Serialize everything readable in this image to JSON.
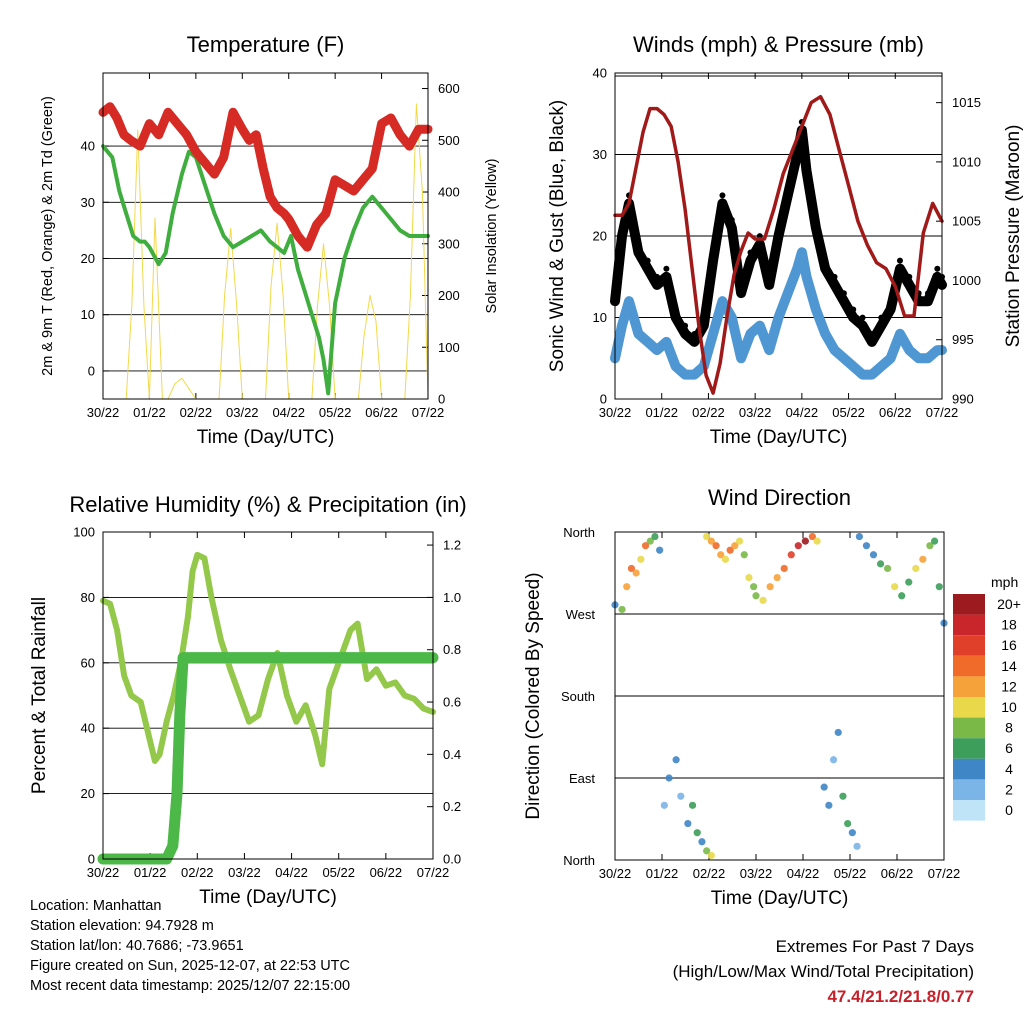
{
  "colors": {
    "temp2m": "#d62a24",
    "td": "#3fae3f",
    "solar": "#f2d94a",
    "wind": "#000000",
    "gust_sonic": "#4f97d3",
    "pressure": "#a01a1a",
    "rh": "#93c84a",
    "precip": "#4bb847"
  },
  "time_ticks": [
    "30/22",
    "01/22",
    "02/22",
    "03/22",
    "04/22",
    "05/22",
    "06/22",
    "07/22"
  ],
  "time_axis_label": "Time (Day/UTC)",
  "chart_data": [
    {
      "id": "temperature",
      "type": "line",
      "title": "Temperature (F)",
      "ylabel": "2m & 9m T (Red, Orange) & 2m Td (Green)",
      "ylabel_right": "Solar Insolation (Yellow)",
      "ylim": [
        -5,
        53
      ],
      "yticks": [
        0,
        10,
        20,
        30,
        40
      ],
      "ylim_right": [
        0,
        630
      ],
      "yticks_right": [
        0,
        100,
        200,
        300,
        400,
        500,
        600
      ],
      "xlim_days": [
        0,
        7
      ],
      "series": [
        {
          "name": "2m & 9m T",
          "color_key": "temp2m",
          "x": [
            0,
            0.15,
            0.3,
            0.45,
            0.6,
            0.8,
            1.0,
            1.2,
            1.4,
            1.6,
            1.8,
            2.0,
            2.2,
            2.4,
            2.6,
            2.8,
            3.0,
            3.15,
            3.3,
            3.45,
            3.6,
            3.75,
            3.9,
            4.0,
            4.2,
            4.4,
            4.6,
            4.8,
            5.0,
            5.2,
            5.4,
            5.6,
            5.8,
            6.0,
            6.2,
            6.4,
            6.6,
            6.8,
            7.0
          ],
          "values": [
            46,
            47,
            45,
            42,
            41,
            40,
            44,
            42,
            46,
            44,
            42,
            39,
            37,
            35,
            38,
            46,
            43,
            41,
            42,
            36,
            31,
            29,
            28,
            27,
            24,
            22,
            26,
            28,
            34,
            33,
            32,
            34,
            36,
            44,
            45,
            42,
            40,
            43,
            43
          ]
        },
        {
          "name": "2m Td",
          "color_key": "td",
          "x": [
            0,
            0.1,
            0.2,
            0.35,
            0.5,
            0.65,
            0.8,
            0.9,
            1.0,
            1.2,
            1.35,
            1.5,
            1.7,
            1.85,
            2.0,
            2.2,
            2.4,
            2.6,
            2.8,
            3.0,
            3.2,
            3.4,
            3.6,
            3.75,
            3.9,
            4.05,
            4.2,
            4.35,
            4.5,
            4.65,
            4.75,
            4.85,
            5.0,
            5.2,
            5.4,
            5.6,
            5.8,
            6.0,
            6.2,
            6.4,
            6.6,
            6.8,
            7.0
          ],
          "values": [
            40,
            39,
            38,
            32,
            28,
            24,
            23,
            23,
            22,
            19,
            21,
            28,
            35,
            39,
            38,
            33,
            28,
            24,
            22,
            23,
            24,
            25,
            23,
            22,
            21,
            24,
            18,
            14,
            10,
            6,
            2,
            -4,
            12,
            20,
            25,
            29,
            31,
            29,
            27,
            25,
            24,
            24,
            24
          ]
        },
        {
          "name": "Solar Insolation",
          "color_key": "solar",
          "axis": "right",
          "x": [
            0.5,
            0.62,
            0.75,
            0.88,
            1.0,
            1.12,
            1.28,
            1.4,
            1.55,
            1.7,
            1.85,
            2.0,
            2.5,
            2.62,
            2.75,
            2.88,
            3.0,
            3.5,
            3.62,
            3.75,
            3.88,
            4.0,
            4.5,
            4.62,
            4.75,
            4.88,
            5.0,
            5.5,
            5.62,
            5.75,
            5.88,
            6.0,
            6.5,
            6.62,
            6.75,
            6.88,
            7.0
          ],
          "values": [
            0,
            180,
            520,
            180,
            0,
            350,
            0,
            0,
            30,
            40,
            20,
            0,
            0,
            200,
            330,
            180,
            0,
            0,
            220,
            340,
            200,
            0,
            0,
            180,
            300,
            180,
            0,
            0,
            120,
            200,
            150,
            0,
            0,
            200,
            570,
            400,
            0
          ]
        }
      ]
    },
    {
      "id": "winds",
      "type": "line",
      "title": "Winds (mph) & Pressure (mb)",
      "ylabel": "Sonic Wind & Gust (Blue, Black)",
      "ylabel_right": "Station Pressure (Maroon)",
      "ylim": [
        0,
        40
      ],
      "yticks": [
        0,
        10,
        20,
        30,
        40
      ],
      "ylim_right": [
        990,
        1017.5
      ],
      "yticks_right": [
        990,
        995,
        1000,
        1005,
        1010,
        1015
      ],
      "xlim_days": [
        0,
        7
      ],
      "series": [
        {
          "name": "Gust",
          "color_key": "wind",
          "marker": "dot",
          "x": [
            0,
            0.15,
            0.3,
            0.5,
            0.7,
            0.9,
            1.1,
            1.3,
            1.5,
            1.7,
            1.9,
            2.1,
            2.3,
            2.5,
            2.7,
            2.9,
            3.1,
            3.3,
            3.5,
            3.7,
            3.9,
            4.0,
            4.1,
            4.3,
            4.5,
            4.7,
            4.9,
            5.1,
            5.3,
            5.5,
            5.7,
            5.9,
            6.1,
            6.3,
            6.5,
            6.7,
            6.9,
            7.0
          ],
          "values": [
            12,
            20,
            24,
            18,
            16,
            14,
            15,
            10,
            8,
            7,
            9,
            17,
            24,
            21,
            13,
            17,
            19,
            14,
            20,
            25,
            30,
            33,
            28,
            21,
            16,
            14,
            12,
            10,
            9,
            7,
            9,
            11,
            16,
            14,
            12,
            12,
            15,
            14
          ]
        },
        {
          "name": "Sonic Wind",
          "color_key": "gust_sonic",
          "x": [
            0,
            0.15,
            0.3,
            0.5,
            0.7,
            0.9,
            1.1,
            1.3,
            1.5,
            1.7,
            1.9,
            2.1,
            2.3,
            2.5,
            2.7,
            2.9,
            3.1,
            3.3,
            3.5,
            3.7,
            3.9,
            4.0,
            4.1,
            4.3,
            4.5,
            4.7,
            4.9,
            5.1,
            5.3,
            5.5,
            5.7,
            5.9,
            6.1,
            6.3,
            6.5,
            6.7,
            6.9,
            7.0
          ],
          "values": [
            5,
            9,
            12,
            8,
            7,
            6,
            7,
            4,
            3,
            3,
            4,
            8,
            12,
            10,
            5,
            8,
            9,
            6,
            10,
            13,
            16,
            18,
            15,
            11,
            8,
            6,
            5,
            4,
            3,
            3,
            4,
            5,
            8,
            6,
            5,
            5,
            6,
            6
          ]
        },
        {
          "name": "Station Pressure",
          "color_key": "pressure",
          "axis": "right",
          "x": [
            0,
            0.15,
            0.3,
            0.45,
            0.6,
            0.75,
            0.9,
            1.05,
            1.2,
            1.35,
            1.5,
            1.65,
            1.8,
            1.95,
            2.1,
            2.25,
            2.4,
            2.55,
            2.7,
            2.85,
            3.0,
            3.2,
            3.4,
            3.6,
            3.8,
            4.0,
            4.2,
            4.4,
            4.6,
            4.8,
            5.0,
            5.2,
            5.4,
            5.6,
            5.8,
            6.0,
            6.2,
            6.4,
            6.6,
            6.8,
            7.0
          ],
          "values": [
            1005.5,
            1005.5,
            1006.5,
            1009.5,
            1012.5,
            1014.5,
            1014.5,
            1014,
            1013,
            1010,
            1006,
            1001,
            996,
            992,
            990.5,
            993,
            997,
            1000.5,
            1002.5,
            1004,
            1003.5,
            1003.5,
            1006,
            1009,
            1011,
            1013,
            1015,
            1015.5,
            1014,
            1011,
            1008,
            1005,
            1003,
            1001.5,
            1001,
            999.5,
            997,
            997,
            1004,
            1006.5,
            1005
          ]
        }
      ]
    },
    {
      "id": "humidity",
      "type": "line",
      "title": "Relative Humidity (%) & Precipitation (in)",
      "ylabel": "Percent & Total Rainfall",
      "ylim": [
        0,
        100
      ],
      "yticks": [
        0,
        20,
        40,
        60,
        80,
        100
      ],
      "ylim_right": [
        0,
        1.25
      ],
      "yticks_right": [
        0.0,
        0.2,
        0.4,
        0.6,
        0.8,
        1.0,
        1.2
      ],
      "ytick_format_right": 1,
      "xlim_days": [
        0,
        7
      ],
      "series": [
        {
          "name": "Relative Humidity",
          "color_key": "rh",
          "x": [
            0,
            0.15,
            0.3,
            0.45,
            0.6,
            0.8,
            1.0,
            1.1,
            1.2,
            1.35,
            1.5,
            1.65,
            1.8,
            1.9,
            2.0,
            2.15,
            2.3,
            2.5,
            2.7,
            2.9,
            3.1,
            3.3,
            3.5,
            3.7,
            3.9,
            4.1,
            4.3,
            4.5,
            4.65,
            4.8,
            4.95,
            5.1,
            5.25,
            5.4,
            5.6,
            5.8,
            6.0,
            6.2,
            6.4,
            6.6,
            6.8,
            7.0
          ],
          "values": [
            79,
            78,
            70,
            56,
            50,
            48,
            36,
            30,
            32,
            42,
            50,
            60,
            74,
            88,
            93,
            92,
            80,
            67,
            58,
            50,
            42,
            44,
            55,
            63,
            50,
            42,
            47,
            38,
            29,
            52,
            58,
            64,
            70,
            72,
            55,
            58,
            53,
            54,
            50,
            49,
            46,
            45
          ]
        },
        {
          "name": "Total Precipitation",
          "color_key": "precip",
          "axis": "right",
          "x": [
            0,
            1.2,
            1.35,
            1.48,
            1.57,
            1.63,
            1.7,
            7.0
          ],
          "values": [
            0.0,
            0.0,
            0.0,
            0.05,
            0.25,
            0.55,
            0.77,
            0.77
          ]
        }
      ]
    },
    {
      "id": "direction",
      "type": "scatter",
      "title": "Wind Direction",
      "ylabel": "Direction (Colored By Speed)",
      "yticks_labels": [
        "North",
        "East",
        "South",
        "West",
        "North"
      ],
      "ylim_degrees": [
        0,
        360
      ],
      "xlim_days": [
        0,
        7
      ],
      "colorbar": {
        "title": "mph",
        "labels": [
          "20+",
          "18",
          "16",
          "14",
          "12",
          "10",
          "8",
          "6",
          "4",
          "2",
          "0"
        ],
        "colors": [
          "#9b1b1e",
          "#c8262a",
          "#e0402a",
          "#f06a2a",
          "#f6a23a",
          "#e8d84a",
          "#7ab848",
          "#3c9e5a",
          "#3f86c6",
          "#7bb4e6",
          "#bfe3f7"
        ]
      },
      "groups": [
        {
          "x": [
            0,
            0.15,
            0.25,
            0.35,
            0.45,
            0.55,
            0.65,
            0.75,
            0.85,
            0.95
          ],
          "deg": [
            280,
            275,
            300,
            320,
            315,
            330,
            345,
            350,
            355,
            340
          ],
          "speed": [
            3,
            8,
            12,
            14,
            12,
            10,
            14,
            8,
            6,
            4
          ]
        },
        {
          "x": [
            1.05,
            1.15,
            1.3,
            1.4,
            1.55,
            1.65,
            1.75,
            1.85,
            1.95,
            2.05
          ],
          "deg": [
            60,
            90,
            110,
            70,
            40,
            60,
            30,
            20,
            10,
            5
          ],
          "speed": [
            2,
            3,
            4,
            2,
            4,
            6,
            5,
            4,
            8,
            10
          ]
        },
        {
          "x": [
            1.95,
            2.05,
            2.15,
            2.25,
            2.35,
            2.45,
            2.55,
            2.65,
            2.75,
            2.85,
            2.95
          ],
          "deg": [
            355,
            350,
            345,
            335,
            330,
            340,
            345,
            350,
            335,
            310,
            300
          ],
          "speed": [
            10,
            12,
            14,
            12,
            10,
            14,
            12,
            10,
            8,
            10,
            8
          ]
        },
        {
          "x": [
            3.0,
            3.15,
            3.3,
            3.45,
            3.6,
            3.75,
            3.9,
            4.05,
            4.2,
            4.3
          ],
          "deg": [
            290,
            285,
            300,
            310,
            320,
            335,
            345,
            350,
            355,
            350
          ],
          "speed": [
            8,
            10,
            12,
            12,
            14,
            16,
            18,
            20,
            14,
            10
          ]
        },
        {
          "x": [
            4.45,
            4.55,
            4.65,
            4.75,
            4.85,
            4.95,
            5.05,
            5.15
          ],
          "deg": [
            80,
            60,
            110,
            140,
            70,
            40,
            30,
            15
          ],
          "speed": [
            3,
            4,
            2,
            4,
            5,
            6,
            3,
            2
          ]
        },
        {
          "x": [
            5.2,
            5.35,
            5.5,
            5.65,
            5.8,
            5.95,
            6.1,
            6.25,
            6.4,
            6.55,
            6.7,
            6.8,
            6.9,
            7.0
          ],
          "deg": [
            355,
            345,
            335,
            325,
            320,
            300,
            290,
            305,
            320,
            330,
            345,
            350,
            300,
            260
          ],
          "speed": [
            4,
            3,
            4,
            6,
            8,
            10,
            6,
            5,
            10,
            12,
            8,
            6,
            5,
            4
          ]
        }
      ]
    }
  ],
  "info": {
    "location": "Location: Manhattan",
    "elevation": "Station elevation: 94.7928 m",
    "latlon": "Station lat/lon: 40.7686; -73.9651",
    "created": "Figure created on Sun, 2025-12-07, at 22:53 UTC",
    "recent": "Most recent data timestamp: 2025/12/07 22:15:00"
  },
  "extremes": {
    "heading": "Extremes For Past 7 Days",
    "subheading": "(High/Low/Max Wind/Total Precipitation)",
    "values": "47.4/21.2/21.8/0.77"
  }
}
